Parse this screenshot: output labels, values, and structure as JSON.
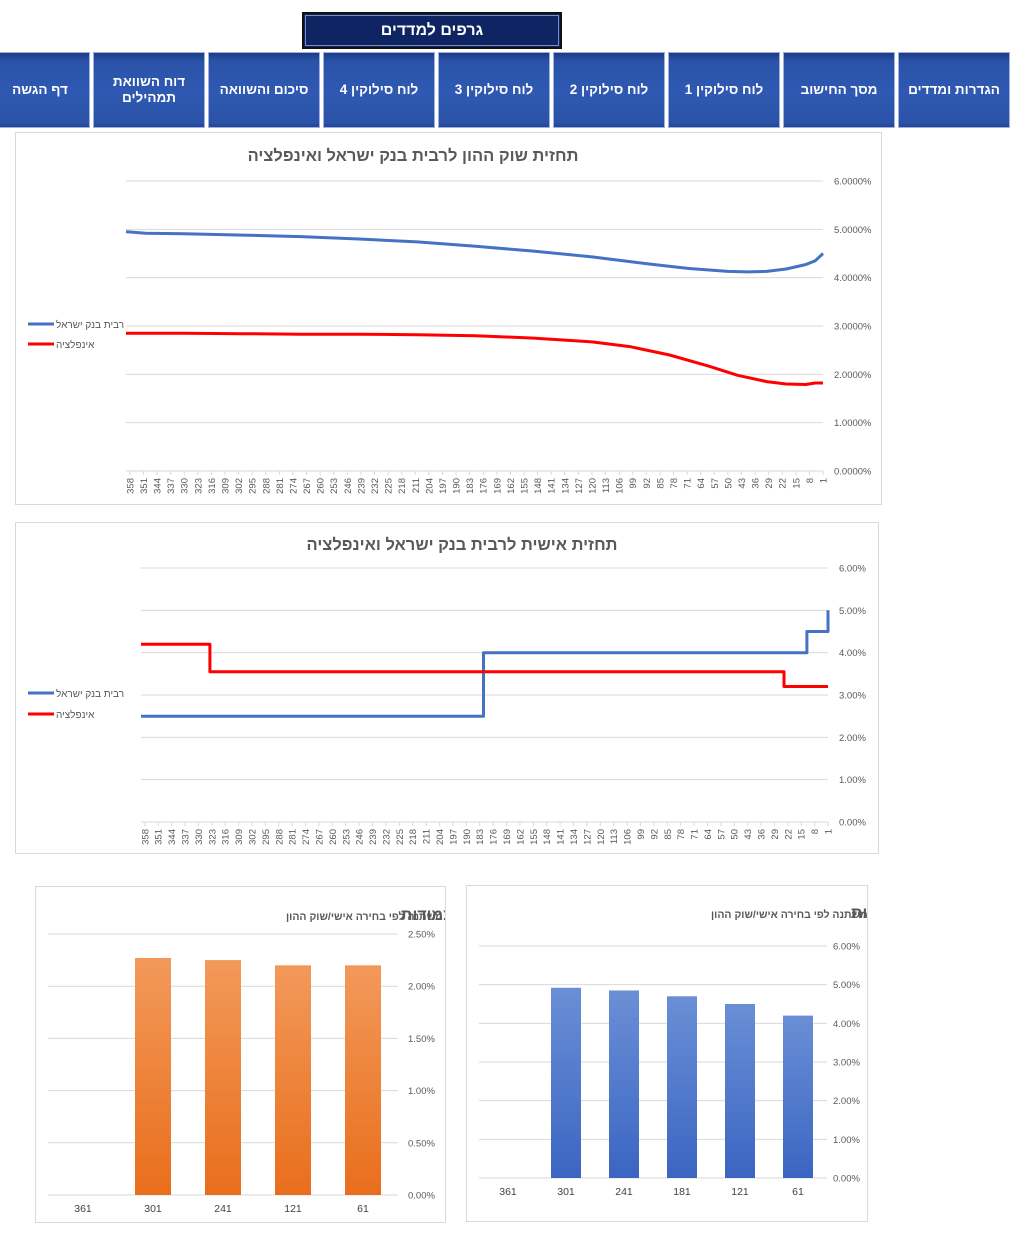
{
  "header": {
    "title": "גרפים למדדים"
  },
  "nav": {
    "buttons": [
      {
        "label": "הגדרות ומדדים"
      },
      {
        "label": "מסך החישוב"
      },
      {
        "label": "לוח סילוקין 1"
      },
      {
        "label": "לוח סילוקין 2"
      },
      {
        "label": "לוח סילוקין 3"
      },
      {
        "label": "לוח סילוקין 4"
      },
      {
        "label": "סיכום והשוואה"
      },
      {
        "label": "דוח השוואת תמהילים"
      },
      {
        "label": "דף הגשה"
      }
    ]
  },
  "colors": {
    "blue": "#4472c4",
    "red": "#ff0000",
    "orange": "#ed7d31",
    "barBlue": "#4472c4"
  },
  "chart_data": [
    {
      "type": "line",
      "title": "תחזית שוק ההון לרבית בנק ישראל ואינפלציה",
      "x_reversed": true,
      "x_ticks": [
        "358",
        "351",
        "344",
        "337",
        "330",
        "323",
        "316",
        "309",
        "302",
        "295",
        "288",
        "281",
        "274",
        "267",
        "260",
        "253",
        "246",
        "239",
        "232",
        "225",
        "218",
        "211",
        "204",
        "197",
        "190",
        "183",
        "176",
        "169",
        "162",
        "155",
        "148",
        "141",
        "134",
        "127",
        "120",
        "113",
        "106",
        "99",
        "92",
        "85",
        "78",
        "71",
        "64",
        "57",
        "50",
        "43",
        "36",
        "29",
        "22",
        "15",
        "8",
        "1"
      ],
      "ylim": [
        0,
        6
      ],
      "y_ticks": [
        "0.0000%",
        "1.0000%",
        "2.0000%",
        "3.0000%",
        "4.0000%",
        "5.0000%",
        "6.0000%"
      ],
      "series": [
        {
          "name": "רבית בנק ישראל",
          "color": "#4472c4",
          "x": [
            360,
            350,
            330,
            300,
            270,
            240,
            210,
            180,
            150,
            120,
            90,
            70,
            50,
            40,
            30,
            20,
            10,
            5,
            1
          ],
          "y": [
            4.95,
            4.92,
            4.91,
            4.88,
            4.85,
            4.8,
            4.74,
            4.65,
            4.55,
            4.43,
            4.28,
            4.19,
            4.13,
            4.12,
            4.13,
            4.18,
            4.27,
            4.35,
            4.5
          ]
        },
        {
          "name": "אינפלציה",
          "color": "#ff0000",
          "x": [
            360,
            330,
            300,
            270,
            240,
            210,
            180,
            150,
            120,
            100,
            80,
            60,
            45,
            30,
            20,
            10,
            5,
            1
          ],
          "y": [
            2.85,
            2.85,
            2.84,
            2.83,
            2.83,
            2.82,
            2.8,
            2.75,
            2.67,
            2.57,
            2.4,
            2.17,
            1.98,
            1.85,
            1.8,
            1.79,
            1.82,
            1.82
          ]
        }
      ]
    },
    {
      "type": "line",
      "title": "תחזית אישית לרבית בנק ישראל ואינפלציה",
      "x_reversed": true,
      "x_ticks": [
        "358",
        "351",
        "344",
        "337",
        "330",
        "323",
        "316",
        "309",
        "302",
        "295",
        "288",
        "281",
        "274",
        "267",
        "260",
        "253",
        "246",
        "239",
        "232",
        "225",
        "218",
        "211",
        "204",
        "197",
        "190",
        "183",
        "176",
        "169",
        "162",
        "155",
        "148",
        "141",
        "134",
        "127",
        "120",
        "113",
        "106",
        "99",
        "92",
        "85",
        "78",
        "71",
        "64",
        "57",
        "50",
        "43",
        "36",
        "29",
        "22",
        "15",
        "8",
        "1"
      ],
      "ylim": [
        0,
        6
      ],
      "y_ticks": [
        "0.00%",
        "1.00%",
        "2.00%",
        "3.00%",
        "4.00%",
        "5.00%",
        "6.00%"
      ],
      "series": [
        {
          "name": "רבית בנק ישראל",
          "color": "#4472c4",
          "x": [
            360,
            181,
            181,
            12,
            12,
            1,
            1
          ],
          "y": [
            2.5,
            2.5,
            4.0,
            4.0,
            4.5,
            4.5,
            5.0
          ]
        },
        {
          "name": "אינפלציה",
          "color": "#ff0000",
          "x": [
            360,
            324,
            324,
            24,
            24,
            1
          ],
          "y": [
            4.2,
            4.2,
            3.55,
            3.55,
            3.2,
            3.2
          ]
        }
      ]
    },
    {
      "type": "bar",
      "title": "עוגנים צמודות",
      "subtitle": "משתנה לפי בחירה אישי/שוק ההון",
      "categories": [
        "361",
        "301",
        "241",
        "121",
        "61"
      ],
      "values": [
        0,
        2.27,
        2.25,
        2.2,
        2.2
      ],
      "ylim": [
        0,
        2.5
      ],
      "y_ticks": [
        "0.00%",
        "0.50%",
        "1.00%",
        "1.50%",
        "2.00%",
        "2.50%"
      ],
      "color": "#ed7d31"
    },
    {
      "type": "bar",
      "title": "עוגנים לא צמודות",
      "subtitle": "משתנה לפי בחירה אישי/שוק ההון",
      "categories": [
        "361",
        "301",
        "241",
        "181",
        "121",
        "61"
      ],
      "values": [
        0,
        4.92,
        4.85,
        4.7,
        4.5,
        4.2
      ],
      "ylim": [
        0,
        6
      ],
      "y_ticks": [
        "0.00%",
        "1.00%",
        "2.00%",
        "3.00%",
        "4.00%",
        "5.00%",
        "6.00%"
      ],
      "color": "#4472c4"
    }
  ]
}
